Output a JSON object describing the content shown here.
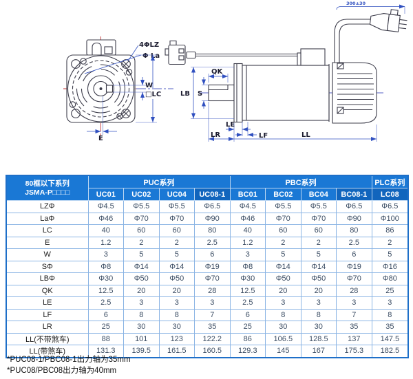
{
  "drawing": {
    "front_view": {
      "labels": {
        "bolt_holes": "4ΦLZ",
        "flange_circle": "Φ La",
        "key_width": "W",
        "flange_size": "□LC",
        "key_offset": "E"
      }
    },
    "side_view": {
      "labels": {
        "key_length": "QK",
        "pilot_diameter": "LB",
        "shaft_diameter": "S",
        "flange_thickness": "LE",
        "shaft_length": "LR",
        "flange_offset": "LF",
        "body_length": "LL",
        "cable_length": "300±30"
      }
    }
  },
  "table": {
    "corner": {
      "line1": "80框以下系列",
      "line2": "JSMA-P□□□□"
    },
    "groups": [
      {
        "label": "PUC系列",
        "span": 4
      },
      {
        "label": "PBC系列",
        "span": 4
      },
      {
        "label": "PLC系列",
        "span": 1
      }
    ],
    "columns": [
      {
        "label": "UC01"
      },
      {
        "label": "UC02"
      },
      {
        "label": "UC04"
      },
      {
        "label": "UC08-1"
      },
      {
        "label": "BC01"
      },
      {
        "label": "BC02"
      },
      {
        "label": "BC04"
      },
      {
        "label": "BC08-1"
      },
      {
        "label": "LC08"
      }
    ],
    "rows": [
      {
        "label": "LZΦ",
        "values": [
          "Φ4.5",
          "Φ5.5",
          "Φ5.5",
          "Φ6.5",
          "Φ4.5",
          "Φ5.5",
          "Φ5.5",
          "Φ6.5",
          "Φ6.5"
        ]
      },
      {
        "label": "LaΦ",
        "values": [
          "Φ46",
          "Φ70",
          "Φ70",
          "Φ90",
          "Φ46",
          "Φ70",
          "Φ70",
          "Φ90",
          "Φ100"
        ]
      },
      {
        "label": "LC",
        "values": [
          "40",
          "60",
          "60",
          "80",
          "40",
          "60",
          "60",
          "80",
          "86"
        ]
      },
      {
        "label": "E",
        "values": [
          "1.2",
          "2",
          "2",
          "2.5",
          "1.2",
          "2",
          "2",
          "2.5",
          "2"
        ]
      },
      {
        "label": "W",
        "values": [
          "3",
          "5",
          "5",
          "6",
          "3",
          "5",
          "5",
          "6",
          "5"
        ]
      },
      {
        "label": "SΦ",
        "values": [
          "Φ8",
          "Φ14",
          "Φ14",
          "Φ19",
          "Φ8",
          "Φ14",
          "Φ14",
          "Φ19",
          "Φ16"
        ]
      },
      {
        "label": "LBΦ",
        "values": [
          "Φ30",
          "Φ50",
          "Φ50",
          "Φ70",
          "Φ30",
          "Φ50",
          "Φ50",
          "Φ70",
          "Φ80"
        ]
      },
      {
        "label": "QK",
        "values": [
          "12.5",
          "20",
          "20",
          "28",
          "12.5",
          "20",
          "20",
          "28",
          "25"
        ]
      },
      {
        "label": "LE",
        "values": [
          "2.5",
          "3",
          "3",
          "3",
          "2.5",
          "3",
          "3",
          "3",
          "3"
        ]
      },
      {
        "label": "LF",
        "values": [
          "6",
          "8",
          "8",
          "7",
          "6",
          "8",
          "8",
          "7",
          "8"
        ]
      },
      {
        "label": "LR",
        "values": [
          "25",
          "30",
          "30",
          "35",
          "25",
          "30",
          "30",
          "35",
          "35"
        ]
      },
      {
        "label": "LL(不带煞车)",
        "values": [
          "88",
          "101",
          "123",
          "122.2",
          "86",
          "106.5",
          "128.5",
          "137",
          "147.5"
        ]
      },
      {
        "label": "LL(带煞车)",
        "values": [
          "131.3",
          "139.5",
          "161.5",
          "160.5",
          "129.3",
          "145",
          "167",
          "175.3",
          "182.5"
        ]
      }
    ]
  },
  "footnotes": [
    "*PUC08-1/PBC08-1出力轴为35mm",
    "*PUC08/PBC08出力轴为40mm"
  ],
  "colors": {
    "header_blue": "#1a78d5",
    "header_dark_blue": "#1165bd",
    "grid_border": "#8ab4e4",
    "outer_border": "#1e6fc8",
    "dimension_blue": "#3050c0",
    "centerline_red": "#c23232",
    "value_text": "#3a4c63"
  }
}
